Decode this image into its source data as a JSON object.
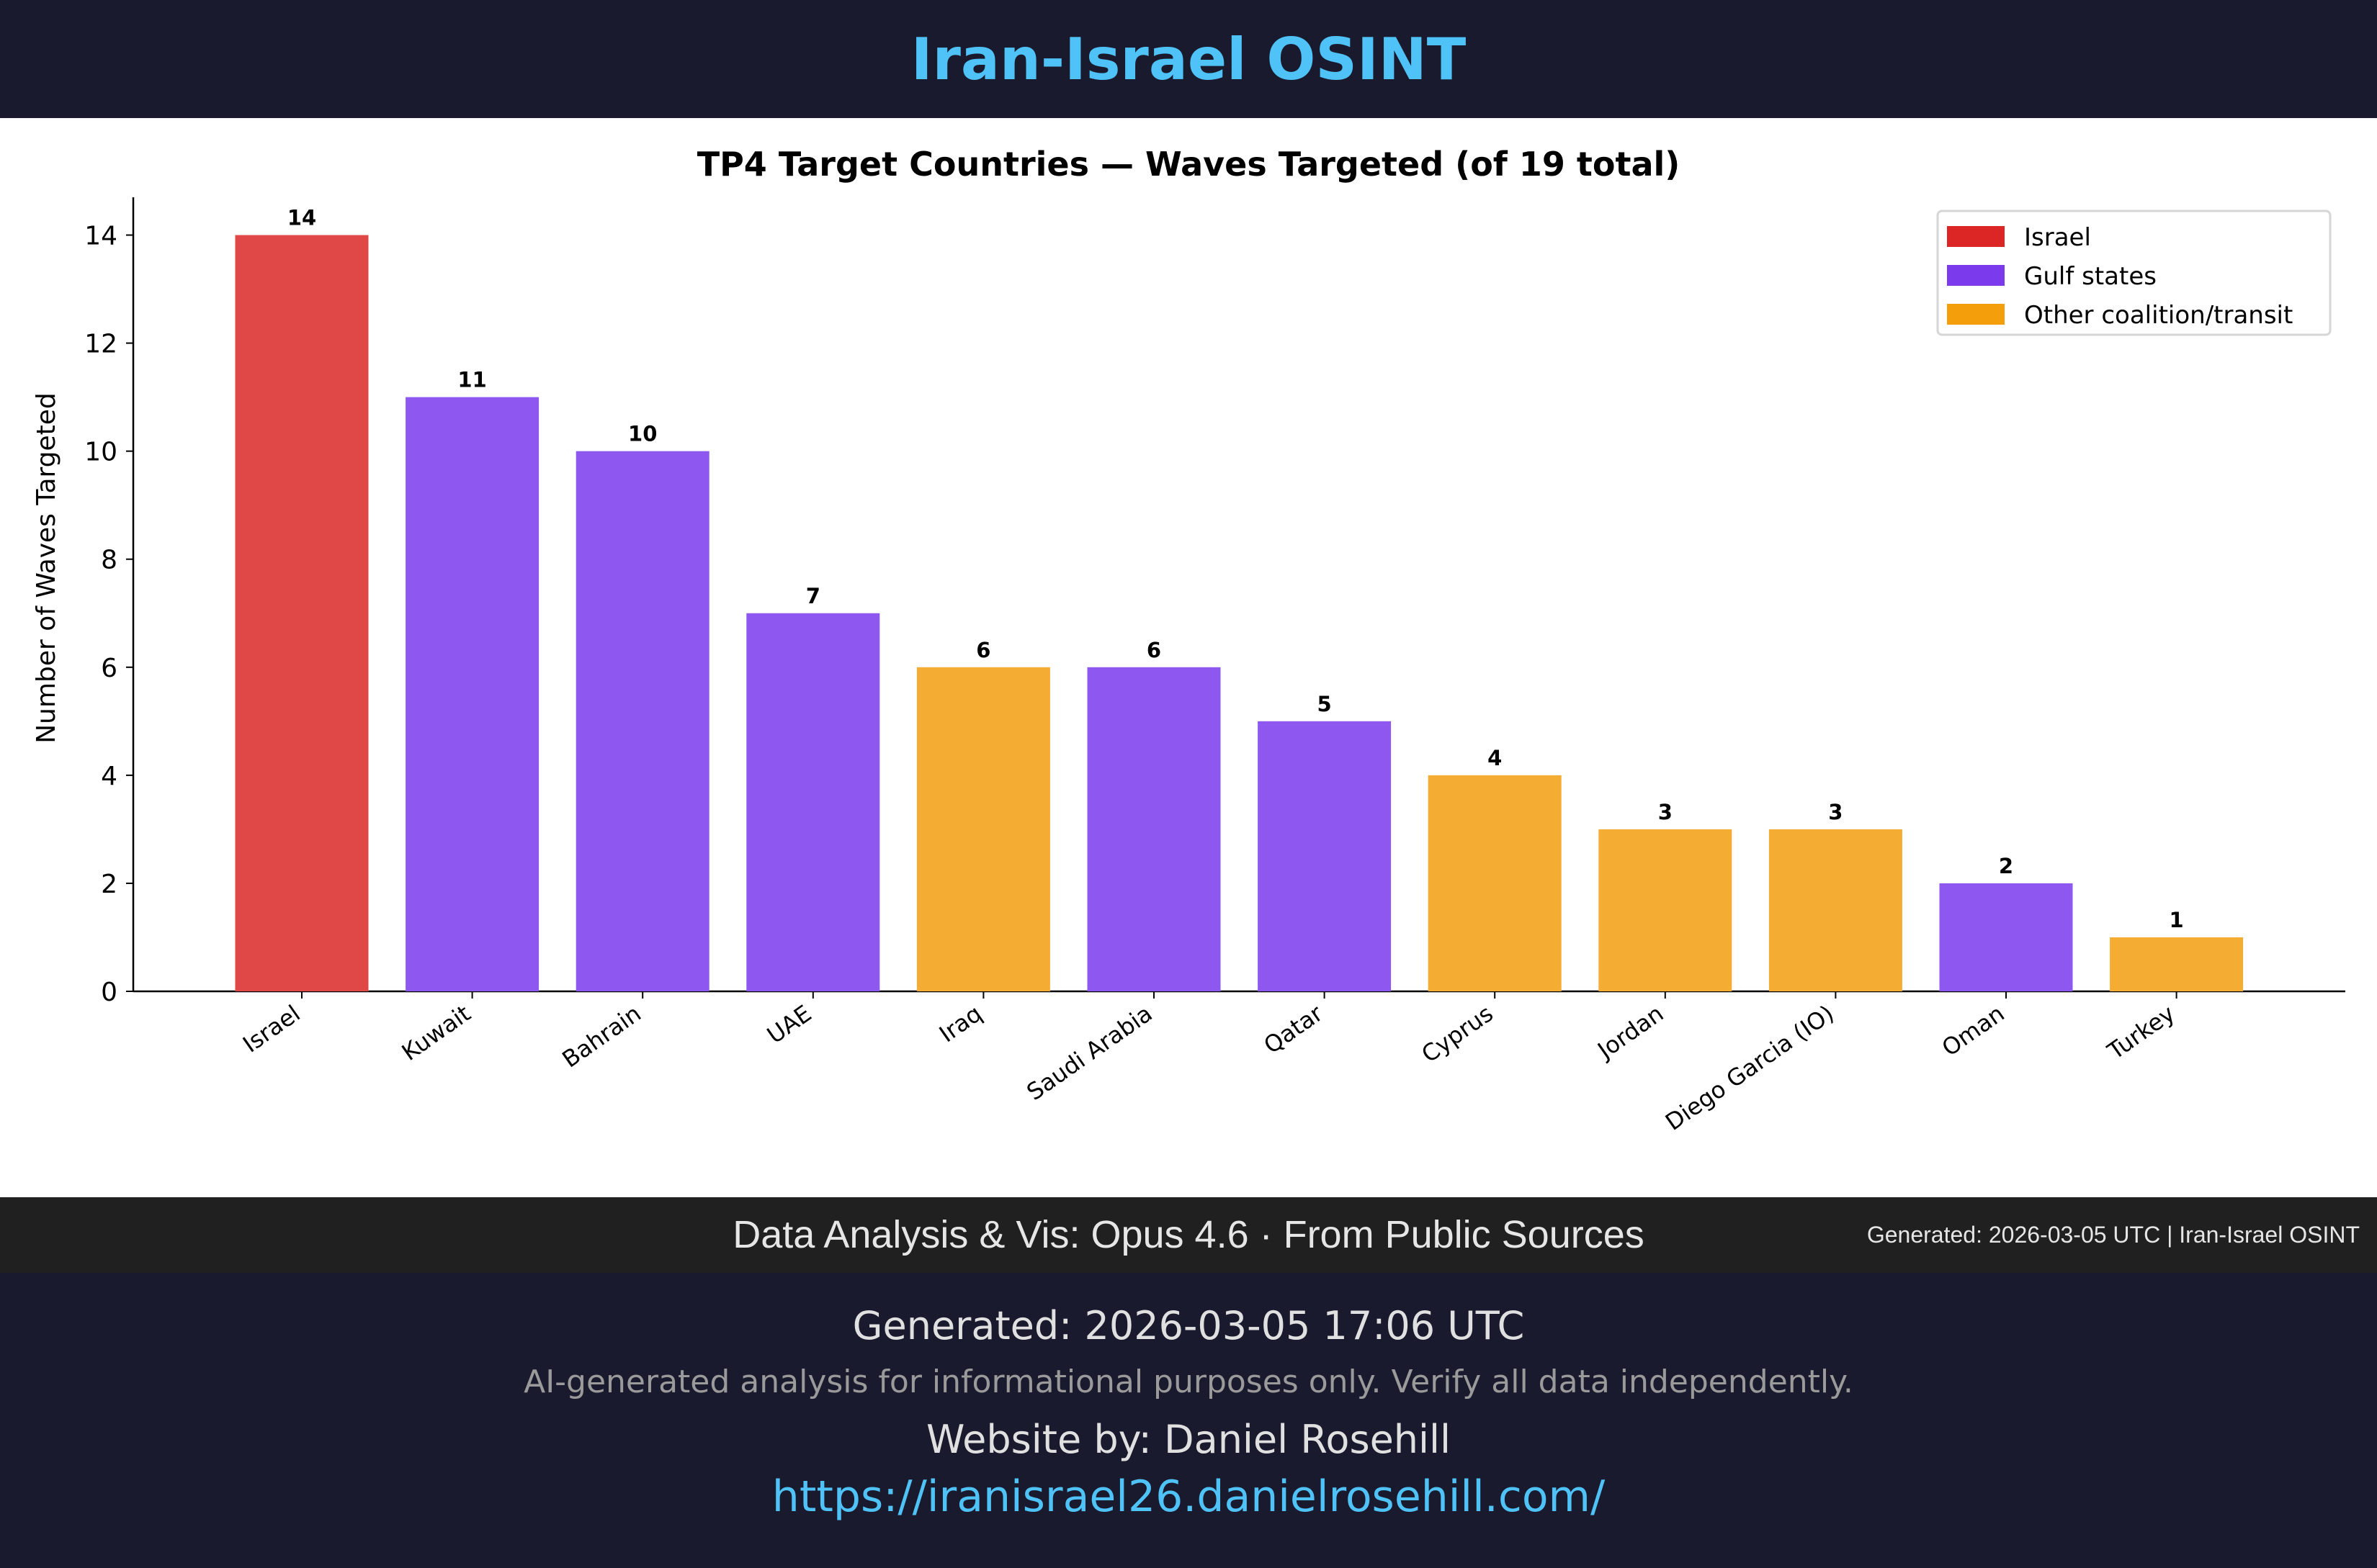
{
  "header": {
    "title": "Iran-Israel OSINT"
  },
  "chart_data": {
    "type": "bar",
    "title": "TP4 Target Countries — Waves Targeted (of 19 total)",
    "xlabel": "",
    "ylabel": "Number of Waves Targeted",
    "ylim": [
      0,
      14.7
    ],
    "yticks": [
      0,
      2,
      4,
      6,
      8,
      10,
      12,
      14
    ],
    "grid": false,
    "categories": [
      "Israel",
      "Kuwait",
      "Bahrain",
      "UAE",
      "Iraq",
      "Saudi Arabia",
      "Qatar",
      "Cyprus",
      "Jordan",
      "Diego Garcia (IO)",
      "Oman",
      "Turkey"
    ],
    "values": [
      14,
      11,
      10,
      7,
      6,
      6,
      5,
      4,
      3,
      3,
      2,
      1
    ],
    "groups": [
      "Israel",
      "Gulf states",
      "Gulf states",
      "Gulf states",
      "Other coalition/transit",
      "Gulf states",
      "Gulf states",
      "Other coalition/transit",
      "Other coalition/transit",
      "Other coalition/transit",
      "Gulf states",
      "Other coalition/transit"
    ],
    "legend": {
      "placement": "top-right",
      "entries": [
        {
          "label": "Israel",
          "color": "#dc2626"
        },
        {
          "label": "Gulf states",
          "color": "#7c3aed"
        },
        {
          "label": "Other coalition/transit",
          "color": "#f59e0b"
        }
      ]
    },
    "bar_colors": {
      "Israel": "#e04848",
      "Gulf states": "#8e57f0",
      "Other coalition/transit": "#f5ac33"
    }
  },
  "strip": {
    "credit": "Data Analysis & Vis: Opus 4.6 · From Public Sources",
    "stamp": "Generated: 2026-03-05 UTC | Iran-Israel OSINT"
  },
  "footer": {
    "generated": "Generated: 2026-03-05 17:06 UTC",
    "disclaimer": "AI-generated analysis for informational purposes only. Verify all data independently.",
    "website_by": "Website by: Daniel Rosehill",
    "url": "https://iranisrael26.danielrosehill.com/"
  }
}
